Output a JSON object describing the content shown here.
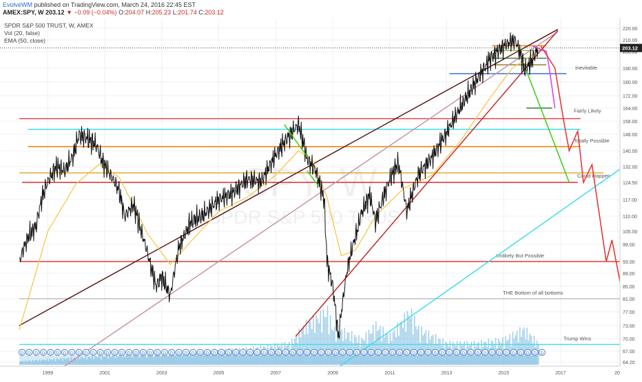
{
  "header": {
    "author": "EvolveWM",
    "published": "published on TradingView.com, March 24, 2016 22:45 EST",
    "symbol": "AMEX:SPY, W",
    "last": "203.12",
    "change": "−0.09 (−0.04%)",
    "o_label": "O:",
    "o": "204.07",
    "h_label": "H:",
    "h": "205.23",
    "l_label": "L:",
    "l": "201.74",
    "c_label": "C:",
    "c": "203.12"
  },
  "indicators": {
    "title": "SPDR S&P 500 TRUST, W, AMEX",
    "vol": "Vol (20, false)",
    "ema": "EMA (50, close)"
  },
  "watermark": {
    "symbol": "SPY, W",
    "name": "SPDR S&P 500 TRUST"
  },
  "chart_data": {
    "type": "line",
    "title": "SPDR S&P 500 TRUST, W, AMEX",
    "x_ticks": [
      "1999",
      "2001",
      "2003",
      "2005",
      "2007",
      "2009",
      "2011",
      "2013",
      "2015",
      "2017",
      "20"
    ],
    "y_ticks": [
      "220.00",
      "210.00",
      "200.00",
      "190.00",
      "180.00",
      "172.00",
      "164.00",
      "156.00",
      "148.00",
      "140.00",
      "132.00",
      "124.50",
      "117.00",
      "110.00",
      "105.00",
      "99.00",
      "93.00",
      "89.00",
      "85.00",
      "81.00",
      "77.00",
      "73.00",
      "70.00",
      "67.00",
      "64.20"
    ],
    "current_price": "203.12",
    "xlim": [
      1998,
      2020
    ],
    "price_series": {
      "name": "SPY",
      "x": [
        1998.0,
        1998.3,
        1998.6,
        1998.8,
        1999.0,
        1999.3,
        1999.6,
        1999.9,
        2000.1,
        2000.4,
        2000.7,
        2000.9,
        2001.2,
        2001.5,
        2001.7,
        2002.0,
        2002.3,
        2002.6,
        2002.8,
        2003.0,
        2003.3,
        2003.6,
        2004.0,
        2004.5,
        2005.0,
        2005.5,
        2006.0,
        2006.5,
        2007.0,
        2007.4,
        2007.8,
        2008.1,
        2008.4,
        2008.7,
        2008.8,
        2009.0,
        2009.2,
        2009.5,
        2010.0,
        2010.3,
        2010.5,
        2011.0,
        2011.3,
        2011.6,
        2011.8,
        2012.0,
        2012.5,
        2013.0,
        2013.5,
        2014.0,
        2014.5,
        2015.0,
        2015.4,
        2015.6,
        2015.75,
        2016.0,
        2016.2
      ],
      "y": [
        93,
        102,
        107,
        118,
        125,
        132,
        130,
        138,
        148,
        146,
        143,
        135,
        128,
        121,
        110,
        115,
        104,
        92,
        85,
        88,
        82,
        98,
        108,
        111,
        117,
        120,
        126,
        125,
        138,
        146,
        154,
        136,
        130,
        117,
        93,
        85,
        70,
        90,
        111,
        119,
        108,
        126,
        134,
        112,
        120,
        128,
        137,
        149,
        165,
        180,
        195,
        205,
        210,
        198,
        188,
        195,
        202
      ]
    },
    "ema_series": {
      "name": "EMA (50, close)",
      "x": [
        1998.0,
        1999.0,
        2000.0,
        2000.8,
        2001.5,
        2002.5,
        2003.3,
        2004.0,
        2005.0,
        2006.0,
        2007.0,
        2007.8,
        2008.3,
        2008.8,
        2009.3,
        2009.8,
        2010.5,
        2011.5,
        2012.5,
        2013.5,
        2014.5,
        2015.3,
        2016.0,
        2016.2
      ],
      "y": [
        72,
        105,
        124,
        133,
        127,
        104,
        92,
        100,
        112,
        118,
        128,
        140,
        135,
        118,
        95,
        97,
        110,
        122,
        128,
        145,
        170,
        190,
        198,
        199
      ]
    },
    "volume": {
      "x": [
        1998,
        2000,
        2002,
        2004,
        2006,
        2007.5,
        2008,
        2008.8,
        2009,
        2009.5,
        2010,
        2010.5,
        2011,
        2011.7,
        2012,
        2013,
        2014,
        2015,
        2015.7,
        2016.2
      ],
      "values": [
        0.05,
        0.1,
        0.15,
        0.18,
        0.22,
        0.3,
        0.55,
        0.75,
        0.5,
        0.45,
        0.35,
        0.55,
        0.4,
        0.75,
        0.5,
        0.3,
        0.3,
        0.35,
        0.5,
        0.3
      ]
    },
    "horizontal_levels": [
      {
        "y": 186,
        "x0": 2013.1,
        "x1": 2017.2,
        "color": "#3a6fd8",
        "label": "Inevitable"
      },
      {
        "y": 157.5,
        "x0": 1998.0,
        "x1": 2017.7,
        "color": "#e53935",
        "label": "Fairly Likely"
      },
      {
        "y": 151,
        "x0": 1998.3,
        "x1": 2017.7,
        "color": "#3fdce8",
        "label": ""
      },
      {
        "y": 142,
        "x0": 1998.3,
        "x1": 2017.7,
        "color": "#f57c00",
        "label": "Totally Possible"
      },
      {
        "y": 129,
        "x0": 1998.0,
        "x1": 2018.5,
        "color": "#e0a020",
        "label": ""
      },
      {
        "y": 124.5,
        "x0": 1998.1,
        "x1": 2017.6,
        "color": "#d32f2f",
        "label": "Could Happen"
      },
      {
        "y": 93,
        "x0": 1998.0,
        "x1": 2020.0,
        "color": "#e53935",
        "label": "Unlikely But Possible"
      },
      {
        "y": 81,
        "x0": 1998.0,
        "x1": 2020.0,
        "color": "#bdbdbd",
        "label": "THE Bottom of all bottoms"
      },
      {
        "y": 68.6,
        "x0": 1998.0,
        "x1": 2020.0,
        "color": "#3fdce8",
        "label": "Trump Wins"
      }
    ],
    "cluster_levels": [
      {
        "y": 205,
        "x0": 2014.6,
        "x1": 2016.5,
        "color": "#f57c00"
      },
      {
        "y": 201,
        "x0": 2014.6,
        "x1": 2016.5,
        "color": "#8bc34a"
      },
      {
        "y": 196,
        "x0": 2014.6,
        "x1": 2016.5,
        "color": "#2e7d32"
      },
      {
        "y": 192,
        "x0": 2014.6,
        "x1": 2016.5,
        "color": "#827717"
      },
      {
        "y": 164,
        "x0": 2015.8,
        "x1": 2016.7,
        "color": "#2e7d32"
      }
    ],
    "trendlines": [
      {
        "x0": 1998.0,
        "y0": 73,
        "x1": 2016.9,
        "y1": 219,
        "color": "#5d1a1a"
      },
      {
        "x0": 1998.9,
        "y0": 60,
        "x1": 2016.9,
        "y1": 217,
        "color": "#c994a6"
      },
      {
        "x0": 2007.7,
        "y0": 70.5,
        "x1": 2016.9,
        "y1": 218,
        "color": "#c62828"
      },
      {
        "x0": 2008.6,
        "y0": 60,
        "x1": 2020.0,
        "y1": 140,
        "color": "#3fdce8"
      }
    ],
    "projections": [
      {
        "color": "#43d01a",
        "x": [
          2007.3,
          2008.1
        ],
        "y": [
          154,
          137
        ]
      },
      {
        "color": "#43d01a",
        "x": [
          2008.1,
          2008.5
        ],
        "y": [
          130,
          123
        ]
      },
      {
        "color": "#43d01a",
        "x": [
          2015.8,
          2017.3
        ],
        "y": [
          188,
          124.5
        ]
      },
      {
        "color": "#e040fb",
        "x": [
          2016.0,
          2016.5,
          2016.6,
          2016.8
        ],
        "y": [
          205,
          200,
          190,
          164
        ]
      },
      {
        "color": "#e53935",
        "x": [
          2016.3,
          2016.8,
          2017.1,
          2017.3,
          2017.6,
          2017.8,
          2018.1,
          2018.6,
          2018.8,
          2019.2,
          2019.5,
          2019.7,
          2019.9,
          2020.0
        ],
        "y": [
          205,
          190,
          157,
          140,
          150,
          124.5,
          133,
          93,
          101,
          81,
          67,
          65,
          69,
          68.6
        ]
      }
    ]
  }
}
